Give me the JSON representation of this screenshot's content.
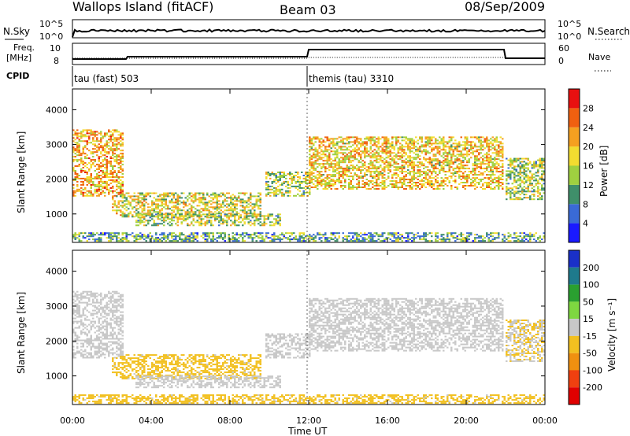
{
  "header": {
    "station": "Wallops Island (fitACF)",
    "beam": "Beam 03",
    "date": "08/Sep/2009"
  },
  "noise_panel": {
    "left_label": "N.Sky",
    "right_label": "N.Search",
    "left_ticks": [
      "10^5",
      "10^0"
    ],
    "right_ticks": [
      "10^5",
      "10^0"
    ]
  },
  "freq_panel": {
    "left_label_1": "Freq.",
    "left_label_2": "[MHz]",
    "left_ticks": [
      "10",
      "8"
    ],
    "right_label": "Nave",
    "right_ticks": [
      "60",
      "0"
    ]
  },
  "cpid_panel": {
    "label": "CPID",
    "modes": [
      {
        "name": "tau (fast) 503",
        "start_hour": 0
      },
      {
        "name": "themis (tau) 3310",
        "start_hour": 12
      }
    ]
  },
  "power_panel": {
    "ylabel": "Slant Range [km]",
    "yticks": [
      "1000",
      "2000",
      "3000",
      "4000"
    ],
    "colorbar_label": "Power [dB]",
    "colorbar_ticks": [
      "4",
      "8",
      "12",
      "16",
      "20",
      "24",
      "28"
    ],
    "colors": [
      "#1a1aff",
      "#3a6ad6",
      "#3f8f6a",
      "#9fd040",
      "#f2dc30",
      "#f5a020",
      "#f06010",
      "#e81010"
    ]
  },
  "velocity_panel": {
    "ylabel": "Slant Range [km]",
    "yticks": [
      "1000",
      "2000",
      "3000",
      "4000"
    ],
    "colorbar_label": "Velocity [m s⁻¹]",
    "colorbar_ticks": [
      "200",
      "100",
      "50",
      "15",
      "-15",
      "-50",
      "-100",
      "-200"
    ],
    "colors": [
      "#1a30c8",
      "#1e7a8c",
      "#2aa030",
      "#7ed840",
      "#c8c8c8",
      "#f2c020",
      "#f09010",
      "#f04010",
      "#e00000"
    ]
  },
  "time_axis": {
    "xlabel": "Time UT",
    "ticks": [
      "00:00",
      "04:00",
      "08:00",
      "12:00",
      "16:00",
      "20:00",
      "00:00"
    ]
  },
  "chart_data": {
    "type": "heatmap",
    "title": "Wallops Island (fitACF)",
    "xlabel": "Time UT",
    "ylabel": "Slant Range [km]",
    "xlim": [
      0,
      24
    ],
    "ylim": [
      180,
      4600
    ],
    "series": [
      {
        "name": "Power [dB]",
        "clim": [
          0,
          30
        ]
      },
      {
        "name": "Velocity [m s⁻¹]",
        "clim": [
          -200,
          200
        ]
      }
    ],
    "echo_regions": [
      {
        "t0": 0.0,
        "t1": 2.6,
        "r0": 1500,
        "r1": 3400,
        "power": 20,
        "velocity": 0
      },
      {
        "t0": 2.0,
        "t1": 9.5,
        "r0": 900,
        "r1": 1600,
        "power": 16,
        "velocity": -40
      },
      {
        "t0": 3.2,
        "t1": 10.5,
        "r0": 650,
        "r1": 1000,
        "power": 14,
        "velocity": 0
      },
      {
        "t0": 0.0,
        "t1": 24.0,
        "r0": 200,
        "r1": 450,
        "power": 10,
        "velocity": -40
      },
      {
        "t0": 9.8,
        "t1": 12.0,
        "r0": 1500,
        "r1": 2200,
        "power": 14,
        "velocity": 0
      },
      {
        "t0": 12.0,
        "t1": 21.9,
        "r0": 1700,
        "r1": 3200,
        "power": 18,
        "velocity": 0
      },
      {
        "t0": 22.0,
        "t1": 24.0,
        "r0": 1400,
        "r1": 2600,
        "power": 14,
        "velocity": -20
      }
    ]
  }
}
